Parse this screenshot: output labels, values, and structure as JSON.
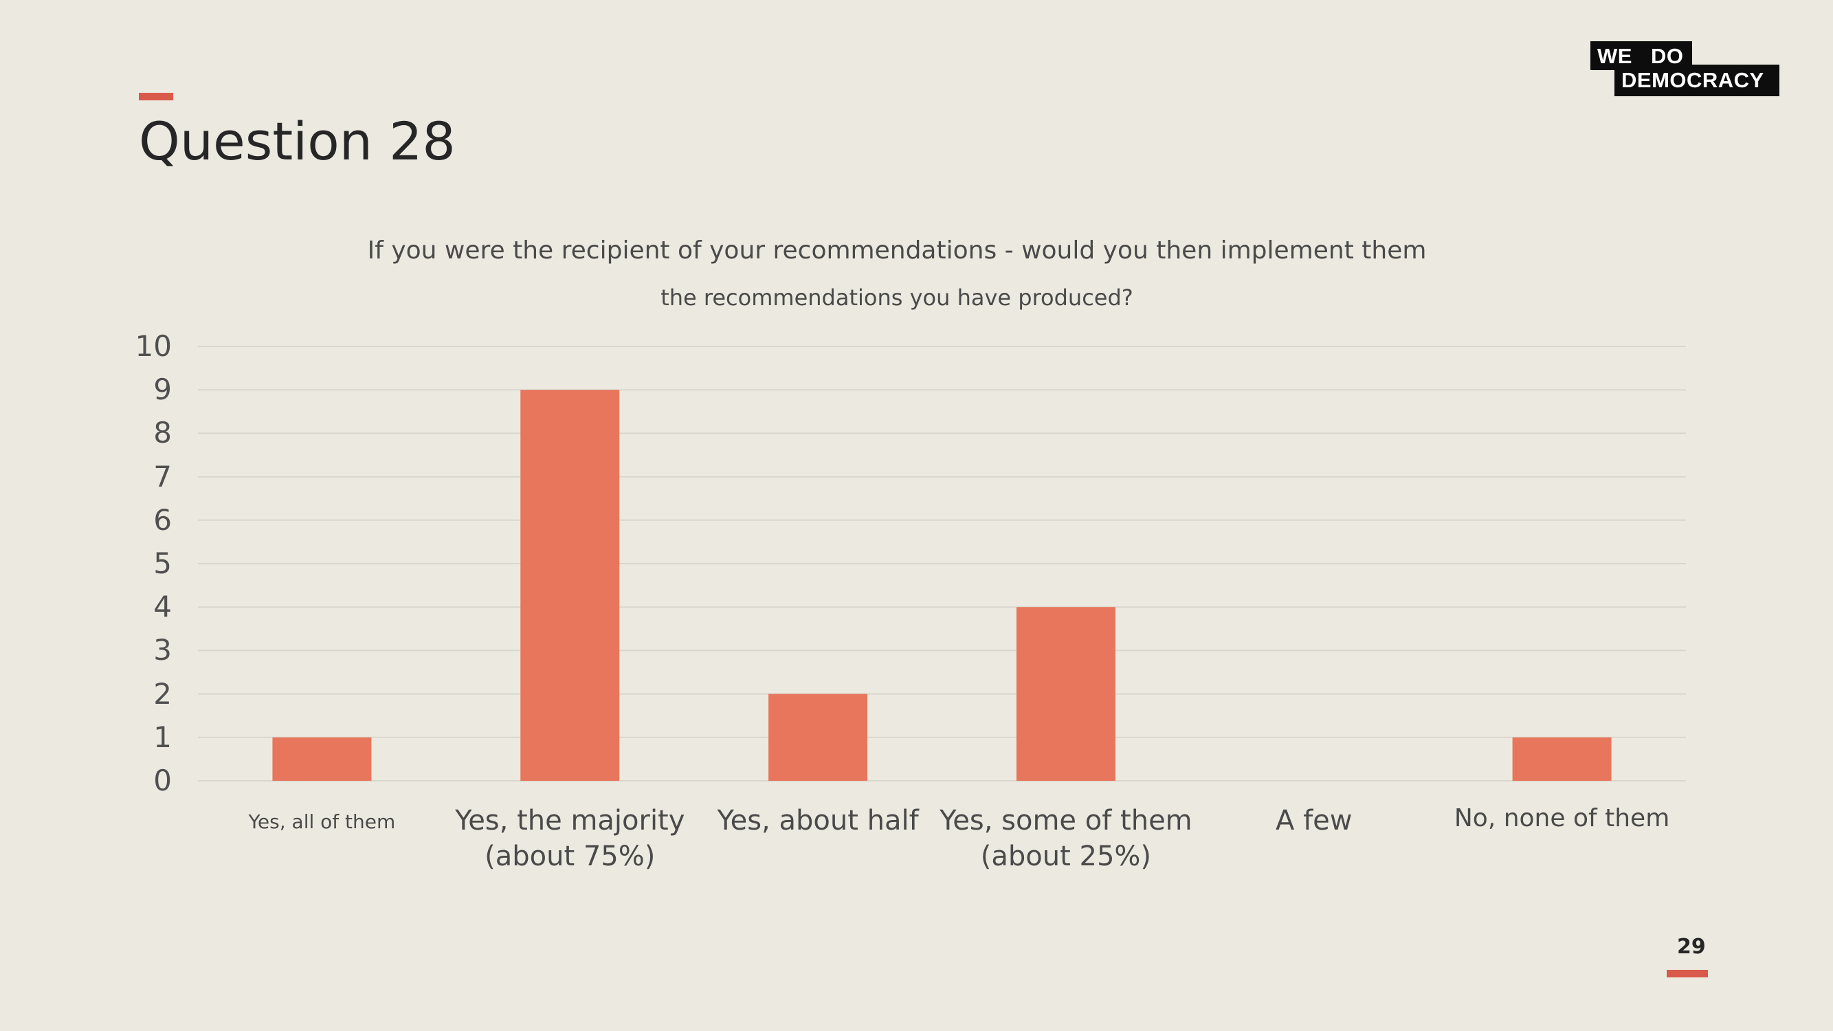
{
  "slide": {
    "title": "Question 28",
    "page_number": "29",
    "logo": {
      "line1_a": "WE",
      "line1_b": "DO",
      "line2": "DEMOCRACY"
    },
    "accent_color": "#d9594a"
  },
  "chart_data": {
    "type": "bar",
    "title": "If you were the recipient of your recommendations - would you then implement them",
    "subtitle": "the recommendations you have produced?",
    "categories": [
      "Yes, all of them",
      "Yes, the majority\n(about 75%)",
      "Yes, about half",
      "Yes, some of them\n(about 25%)",
      "A few",
      "No, none of them"
    ],
    "values": [
      1,
      9,
      2,
      4,
      0,
      1
    ],
    "yticks": [
      "0",
      "1",
      "2",
      "3",
      "4",
      "5",
      "6",
      "7",
      "8",
      "9",
      "10"
    ],
    "ylim": [
      0,
      10
    ],
    "grid": true,
    "bar_color": "#e8765c",
    "xlabel": "",
    "ylabel": ""
  }
}
